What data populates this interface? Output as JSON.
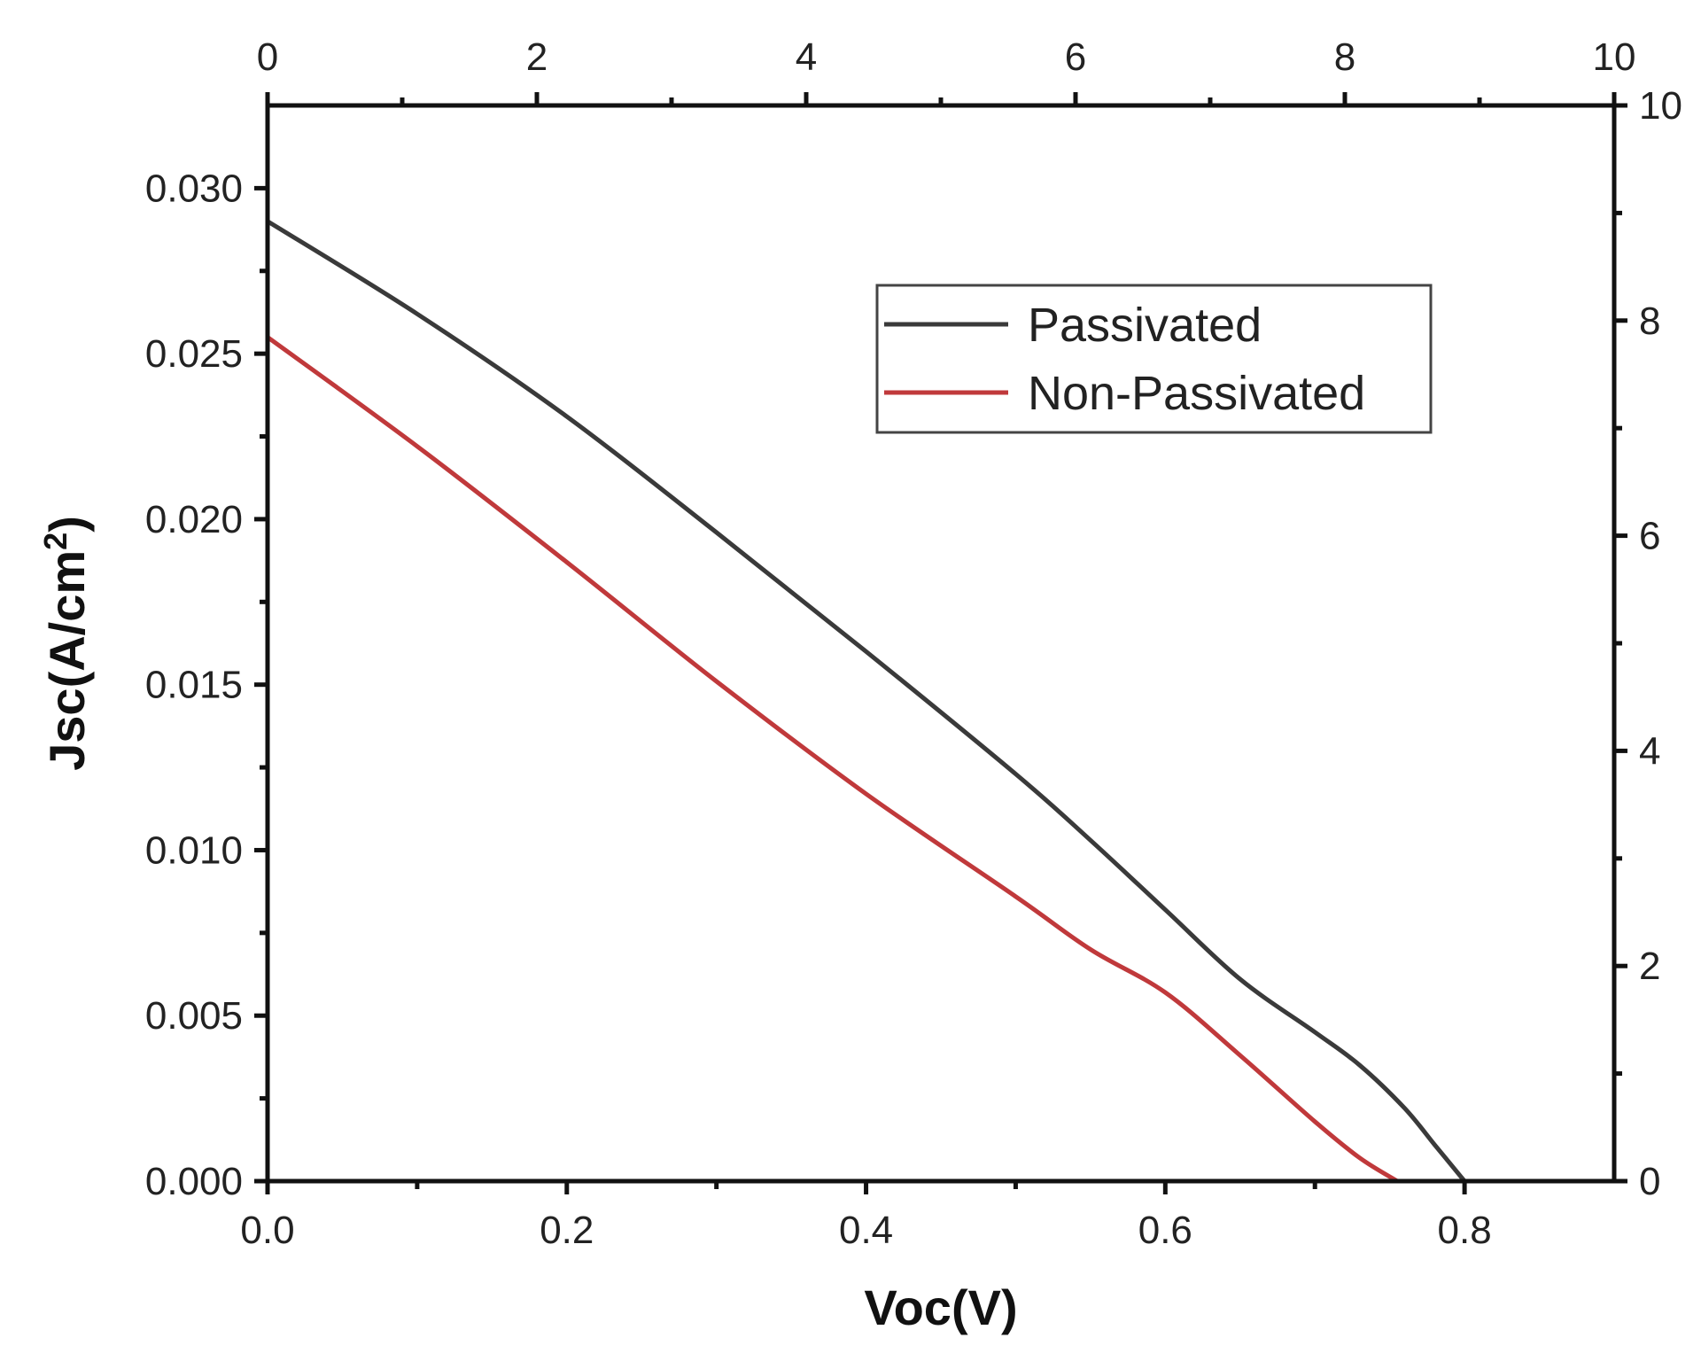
{
  "chart_data": {
    "type": "line",
    "title": "",
    "xlabel": "Voc(V)",
    "ylabel_prefix": "Jsc(A/cm",
    "ylabel_sup": "2",
    "ylabel_suffix": ")",
    "xlim": [
      0.0,
      0.9
    ],
    "ylim": [
      0.0,
      0.0325
    ],
    "x_ticks": [
      0.0,
      0.2,
      0.4,
      0.6,
      0.8
    ],
    "x_tick_labels": [
      "0.0",
      "0.2",
      "0.4",
      "0.6",
      "0.8"
    ],
    "y_ticks": [
      0.0,
      0.005,
      0.01,
      0.015,
      0.02,
      0.025,
      0.03
    ],
    "y_tick_labels": [
      "0.000",
      "0.005",
      "0.010",
      "0.015",
      "0.020",
      "0.025",
      "0.030"
    ],
    "top_axis": {
      "lim": [
        0,
        10
      ],
      "ticks": [
        0,
        2,
        4,
        6,
        8,
        10
      ],
      "tick_labels": [
        "0",
        "2",
        "4",
        "6",
        "8",
        "10"
      ]
    },
    "right_axis": {
      "lim": [
        0,
        10
      ],
      "ticks": [
        0,
        2,
        4,
        6,
        8,
        10
      ],
      "tick_labels": [
        "0",
        "2",
        "4",
        "6",
        "8",
        "10"
      ]
    },
    "legend_position": "top-right",
    "grid": false,
    "series": [
      {
        "name": "Passivated",
        "color": "#3a3a3a",
        "x": [
          0.0,
          0.1,
          0.2,
          0.3,
          0.4,
          0.5,
          0.55,
          0.6,
          0.65,
          0.7,
          0.73,
          0.76,
          0.78,
          0.8
        ],
        "y": [
          0.029,
          0.0262,
          0.0231,
          0.0196,
          0.016,
          0.0123,
          0.0103,
          0.0082,
          0.0061,
          0.0045,
          0.0035,
          0.0022,
          0.0011,
          0.0
        ]
      },
      {
        "name": "Non-Passivated",
        "color": "#c0393b",
        "x": [
          0.0,
          0.1,
          0.2,
          0.3,
          0.4,
          0.5,
          0.55,
          0.6,
          0.65,
          0.7,
          0.73,
          0.755
        ],
        "y": [
          0.0255,
          0.0222,
          0.0187,
          0.0151,
          0.0117,
          0.0086,
          0.007,
          0.0057,
          0.0038,
          0.0018,
          0.0007,
          0.0
        ]
      }
    ]
  }
}
